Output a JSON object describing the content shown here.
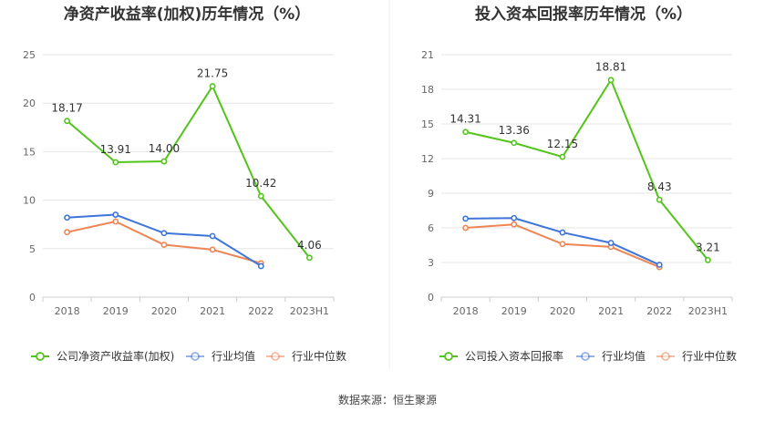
{
  "source_text": "数据来源：恒生聚源",
  "colors": {
    "company": "#52c41a",
    "avg": "#3f74d8",
    "median": "#ef8554",
    "grid": "#e6e6e6",
    "axis": "#cccccc",
    "tick": "#666666",
    "label": "#333333",
    "divider": "#eeeeee"
  },
  "chart_data": [
    {
      "type": "line",
      "title": "净资产收益率(加权)历年情况（%）",
      "categories": [
        "2018",
        "2019",
        "2020",
        "2021",
        "2022",
        "2023H1"
      ],
      "ylim": [
        0,
        25
      ],
      "yticks": [
        0,
        5,
        10,
        15,
        20,
        25
      ],
      "grid": true,
      "legend_position": "bottom",
      "series": [
        {
          "name": "公司净资产收益率(加权)",
          "color": "#52c41a",
          "values": [
            18.17,
            13.91,
            14.0,
            21.75,
            10.42,
            4.06
          ],
          "labels": [
            "18.17",
            "13.91",
            "14.00",
            "21.75",
            "10.42",
            "4.06"
          ]
        },
        {
          "name": "行业均值",
          "color": "#3f74d8",
          "values": [
            8.2,
            8.5,
            6.6,
            6.3,
            3.2,
            null
          ]
        },
        {
          "name": "行业中位数",
          "color": "#ef8554",
          "values": [
            6.7,
            7.8,
            5.4,
            4.9,
            3.5,
            null
          ]
        }
      ]
    },
    {
      "type": "line",
      "title": "投入资本回报率历年情况（%）",
      "categories": [
        "2018",
        "2019",
        "2020",
        "2021",
        "2022",
        "2023H1"
      ],
      "ylim": [
        0,
        21
      ],
      "yticks": [
        0,
        3,
        6,
        9,
        12,
        15,
        18,
        21
      ],
      "grid": true,
      "legend_position": "bottom",
      "series": [
        {
          "name": "公司投入资本回报率",
          "color": "#52c41a",
          "values": [
            14.31,
            13.36,
            12.15,
            18.81,
            8.43,
            3.21
          ],
          "labels": [
            "14.31",
            "13.36",
            "12.15",
            "18.81",
            "8.43",
            "3.21"
          ]
        },
        {
          "name": "行业均值",
          "color": "#3f74d8",
          "values": [
            6.8,
            6.85,
            5.6,
            4.7,
            2.8,
            null
          ]
        },
        {
          "name": "行业中位数",
          "color": "#ef8554",
          "values": [
            6.0,
            6.3,
            4.6,
            4.35,
            2.6,
            null
          ]
        }
      ]
    }
  ]
}
